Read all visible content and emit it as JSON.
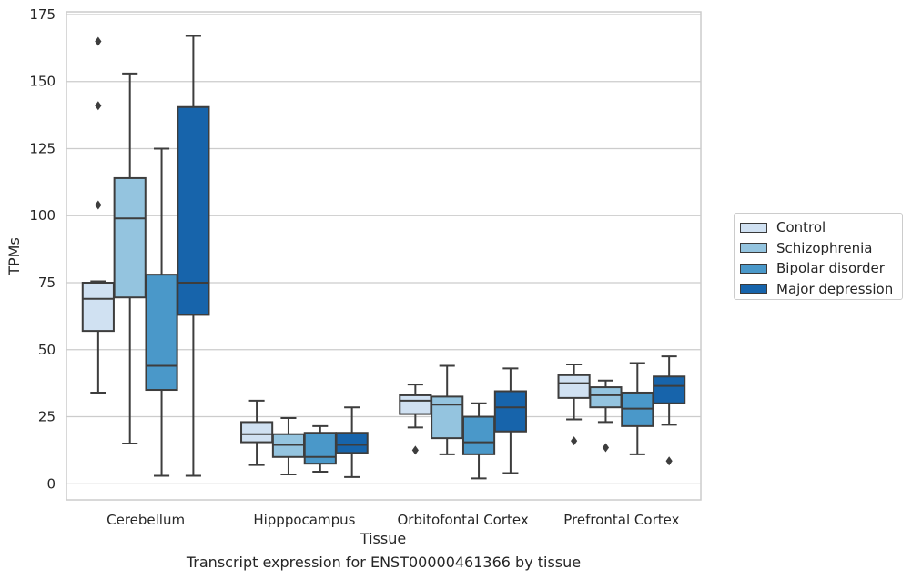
{
  "chart_data": {
    "type": "box",
    "caption": "Transcript expression for ENST00000461366 by tissue",
    "xlabel": "Tissue",
    "ylabel": "TPMs",
    "ylim": [
      -6,
      176
    ],
    "yticks": [
      0,
      25,
      50,
      75,
      100,
      125,
      150,
      175
    ],
    "grid": "horizontal",
    "legend_position": "right",
    "categories": [
      "Cerebellum",
      "Hipppocampus",
      "Orbitofontal Cortex",
      "Prefrontal Cortex"
    ],
    "series": [
      {
        "name": "Control",
        "color": "#d0e1f2",
        "boxes": [
          {
            "whislo": 34,
            "q1": 57,
            "med": 69,
            "q3": 75,
            "whishi": 75.5,
            "fliers": [
              104,
              141,
              165
            ]
          },
          {
            "whislo": 7,
            "q1": 15.5,
            "med": 18.5,
            "q3": 23,
            "whishi": 31,
            "fliers": []
          },
          {
            "whislo": 21,
            "q1": 26,
            "med": 31,
            "q3": 33,
            "whishi": 37,
            "fliers": [
              12.5
            ]
          },
          {
            "whislo": 24,
            "q1": 32,
            "med": 37.5,
            "q3": 40.5,
            "whishi": 44.5,
            "fliers": [
              16
            ]
          }
        ]
      },
      {
        "name": "Schizophrenia",
        "color": "#94c4df",
        "boxes": [
          {
            "whislo": 15,
            "q1": 69.5,
            "med": 99,
            "q3": 114,
            "whishi": 153,
            "fliers": []
          },
          {
            "whislo": 3.5,
            "q1": 10,
            "med": 14.5,
            "q3": 18.5,
            "whishi": 24.5,
            "fliers": []
          },
          {
            "whislo": 11,
            "q1": 17,
            "med": 29.5,
            "q3": 32.5,
            "whishi": 44,
            "fliers": []
          },
          {
            "whislo": 23,
            "q1": 28.5,
            "med": 33,
            "q3": 36,
            "whishi": 38.5,
            "fliers": [
              13.5
            ]
          }
        ]
      },
      {
        "name": "Bipolar disorder",
        "color": "#4a98c9",
        "boxes": [
          {
            "whislo": 3,
            "q1": 35,
            "med": 44,
            "q3": 78,
            "whishi": 125,
            "fliers": []
          },
          {
            "whislo": 4.5,
            "q1": 7.5,
            "med": 10,
            "q3": 19,
            "whishi": 21.5,
            "fliers": []
          },
          {
            "whislo": 2,
            "q1": 11,
            "med": 15.5,
            "q3": 25,
            "whishi": 30,
            "fliers": []
          },
          {
            "whislo": 11,
            "q1": 21.5,
            "med": 28,
            "q3": 34,
            "whishi": 45,
            "fliers": []
          }
        ]
      },
      {
        "name": "Major depression",
        "color": "#1764ab",
        "boxes": [
          {
            "whislo": 3,
            "q1": 63,
            "med": 75,
            "q3": 140.5,
            "whishi": 167,
            "fliers": []
          },
          {
            "whislo": 2.5,
            "q1": 11.5,
            "med": 14.5,
            "q3": 19,
            "whishi": 28.5,
            "fliers": []
          },
          {
            "whislo": 4,
            "q1": 19.5,
            "med": 28.5,
            "q3": 34.5,
            "whishi": 43,
            "fliers": []
          },
          {
            "whislo": 22,
            "q1": 30,
            "med": 36.5,
            "q3": 40,
            "whishi": 47.5,
            "fliers": [
              8.5
            ]
          }
        ]
      }
    ]
  }
}
